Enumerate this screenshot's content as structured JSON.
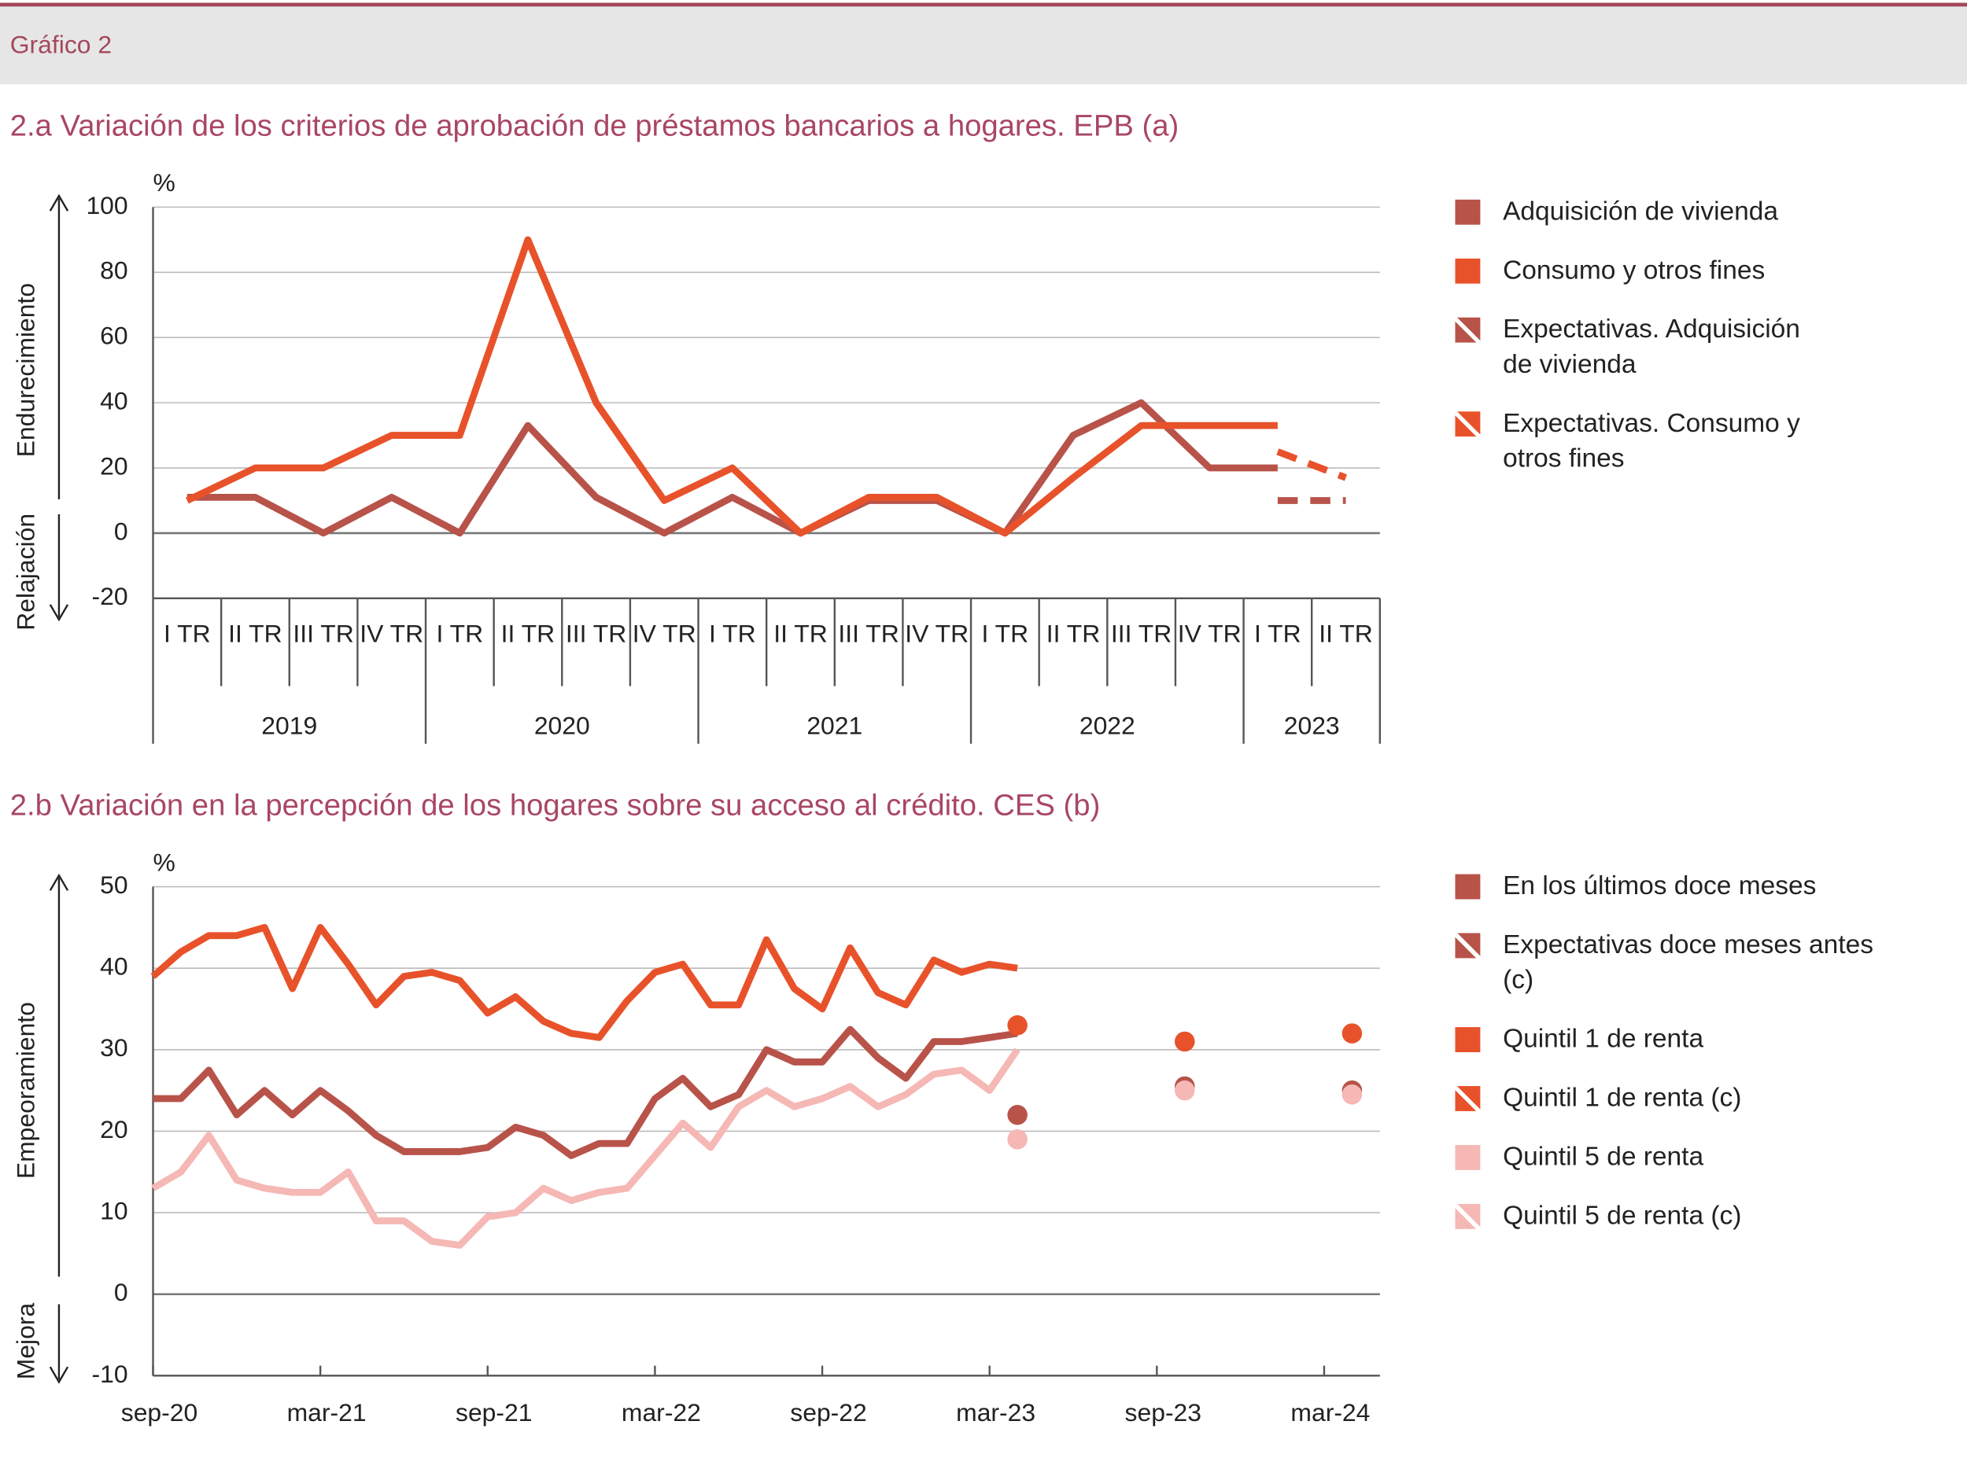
{
  "header": "Gráfico 2",
  "chart_data": [
    {
      "type": "line",
      "title": "2.a  Variación de los criterios de aprobación de préstamos bancarios a hogares. EPB (a)",
      "y_unit": "%",
      "y_labels": [
        "Endurecimiento",
        "Relajación"
      ],
      "categories": [
        "I TR",
        "II TR",
        "III TR",
        "IV TR",
        "I TR",
        "II TR",
        "III TR",
        "IV TR",
        "I TR",
        "II TR",
        "III TR",
        "IV TR",
        "I TR",
        "II TR",
        "III TR",
        "IV TR",
        "I TR",
        "II TR"
      ],
      "x_groups": [
        "2019",
        "2020",
        "2021",
        "2022",
        "2023"
      ],
      "ylim": [
        -20,
        100
      ],
      "yticks": [
        -20,
        0,
        20,
        40,
        60,
        80,
        100
      ],
      "grid": true,
      "series": [
        {
          "name": "Adquisición de vivienda",
          "color": "#b8534a",
          "style": "solid",
          "values": [
            11,
            11,
            0,
            11,
            0,
            33,
            11,
            0,
            11,
            0,
            10,
            10,
            0,
            30,
            40,
            20,
            20,
            null
          ]
        },
        {
          "name": "Consumo y otros fines",
          "color": "#e8522a",
          "style": "solid",
          "values": [
            10,
            20,
            20,
            30,
            30,
            90,
            40,
            10,
            20,
            0,
            11,
            11,
            0,
            17,
            33,
            33,
            33,
            null
          ]
        },
        {
          "name": "Expectativas. Adquisición de vivienda",
          "color": "#b8534a",
          "style": "dashed",
          "values": [
            null,
            null,
            null,
            null,
            null,
            null,
            null,
            null,
            null,
            null,
            null,
            null,
            null,
            null,
            null,
            null,
            10,
            10
          ]
        },
        {
          "name": "Expectativas. Consumo y otros fines",
          "color": "#e8522a",
          "style": "dashed",
          "values": [
            null,
            null,
            null,
            null,
            null,
            null,
            null,
            null,
            null,
            null,
            null,
            null,
            null,
            null,
            null,
            null,
            25,
            17
          ]
        }
      ]
    },
    {
      "type": "line",
      "title": "2.b  Variación en la percepción de los hogares sobre su acceso al crédito. CES (b)",
      "y_unit": "%",
      "y_labels": [
        "Empeoramiento",
        "Mejora"
      ],
      "x": [
        "2020-09",
        "2020-10",
        "2020-11",
        "2020-12",
        "2021-01",
        "2021-02",
        "2021-03",
        "2021-04",
        "2021-05",
        "2021-06",
        "2021-07",
        "2021-08",
        "2021-09",
        "2021-10",
        "2021-11",
        "2021-12",
        "2022-01",
        "2022-02",
        "2022-03",
        "2022-04",
        "2022-05",
        "2022-06",
        "2022-07",
        "2022-08",
        "2022-09",
        "2022-10",
        "2022-11",
        "2022-12",
        "2023-01",
        "2023-02",
        "2023-03",
        "2023-04",
        "2023-10",
        "2024-04"
      ],
      "xlim": [
        "2020-09",
        "2024-05"
      ],
      "xticks": [
        {
          "value": "2020-09",
          "label": "sep-20"
        },
        {
          "value": "2021-03",
          "label": "mar-21"
        },
        {
          "value": "2021-09",
          "label": "sep-21"
        },
        {
          "value": "2022-03",
          "label": "mar-22"
        },
        {
          "value": "2022-09",
          "label": "sep-22"
        },
        {
          "value": "2023-03",
          "label": "mar-23"
        },
        {
          "value": "2023-09",
          "label": "sep-23"
        },
        {
          "value": "2024-03",
          "label": "mar-24"
        }
      ],
      "ylim": [
        -10,
        50
      ],
      "yticks": [
        -10,
        0,
        10,
        20,
        30,
        40,
        50
      ],
      "grid": true,
      "series": [
        {
          "name": "En los últimos doce meses",
          "color": "#b8534a",
          "style": "solid",
          "values": [
            24,
            24,
            27.5,
            22,
            25,
            22,
            25,
            22.5,
            19.5,
            17.5,
            17.5,
            17.5,
            18,
            20.5,
            19.5,
            17,
            18.5,
            18.5,
            24,
            26.5,
            23,
            24.5,
            30,
            28.5,
            28.5,
            32.5,
            29,
            26.5,
            31,
            31,
            31.5,
            32,
            null,
            null
          ]
        },
        {
          "name": "Expectativas doce meses antes (c)",
          "color": "#b8534a",
          "style": "dots",
          "values": [
            null,
            null,
            null,
            null,
            null,
            null,
            null,
            null,
            null,
            null,
            null,
            null,
            null,
            null,
            null,
            null,
            null,
            null,
            null,
            null,
            null,
            null,
            null,
            null,
            null,
            null,
            null,
            null,
            null,
            null,
            null,
            22,
            25.5,
            25
          ]
        },
        {
          "name": "Quintil 1 de renta",
          "color": "#e8522a",
          "style": "solid",
          "values": [
            39,
            42,
            44,
            44,
            45,
            37.5,
            45,
            40.5,
            35.5,
            39,
            39.5,
            38.5,
            34.5,
            36.5,
            33.5,
            32,
            31.5,
            36,
            39.5,
            40.5,
            35.5,
            35.5,
            43.5,
            37.5,
            35,
            42.5,
            37,
            35.5,
            41,
            39.5,
            40.5,
            40,
            null,
            null
          ]
        },
        {
          "name": "Quintil 1 de renta (c)",
          "color": "#e8522a",
          "style": "dots",
          "values": [
            null,
            null,
            null,
            null,
            null,
            null,
            null,
            null,
            null,
            null,
            null,
            null,
            null,
            null,
            null,
            null,
            null,
            null,
            null,
            null,
            null,
            null,
            null,
            null,
            null,
            null,
            null,
            null,
            null,
            null,
            null,
            33,
            31,
            32
          ]
        },
        {
          "name": "Quintil 5 de renta",
          "color": "#f5b8b5",
          "style": "solid",
          "values": [
            13,
            15,
            19.5,
            14,
            13,
            12.5,
            12.5,
            15,
            9,
            9,
            6.5,
            6,
            9.5,
            10,
            13,
            11.5,
            12.5,
            13,
            17,
            21,
            18,
            23,
            25,
            23,
            24,
            25.5,
            23,
            24.5,
            27,
            27.5,
            25,
            30,
            null,
            null
          ]
        },
        {
          "name": "Quintil 5 de renta (c)",
          "color": "#f5b8b5",
          "style": "dots",
          "values": [
            null,
            null,
            null,
            null,
            null,
            null,
            null,
            null,
            null,
            null,
            null,
            null,
            null,
            null,
            null,
            null,
            null,
            null,
            null,
            null,
            null,
            null,
            null,
            null,
            null,
            null,
            null,
            null,
            null,
            null,
            null,
            19,
            25,
            24.5
          ]
        }
      ]
    }
  ]
}
